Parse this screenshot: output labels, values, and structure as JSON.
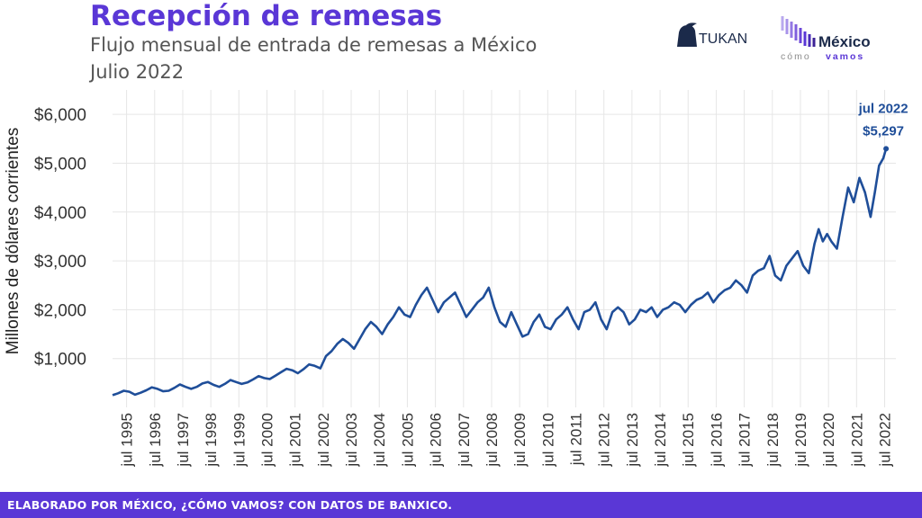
{
  "header": {
    "title": "Recepción de remesas",
    "subtitle": "Flujo mensual de entrada de remesas a México",
    "period": "Julio 2022"
  },
  "logos": {
    "tukan_text": "TUKAN",
    "mcv_name": "México",
    "mcv_tagline_a": "cómo",
    "mcv_tagline_b": "vamos"
  },
  "annotation": {
    "date": "jul 2022",
    "value": "$5,297"
  },
  "footer": {
    "credit": "ELABORADO POR MÉXICO, ¿CÓMO VAMOS? CON DATOS DE BANXICO."
  },
  "colors": {
    "accent": "#5a37d6",
    "line": "#1f4e99",
    "grid": "#e6e6e6",
    "text": "#555555"
  },
  "chart_data": {
    "type": "line",
    "ylabel": "Millones de dólares corrientes",
    "xlabel": "",
    "ylim": [
      0,
      6500
    ],
    "yticks": [
      1000,
      2000,
      3000,
      4000,
      5000,
      6000
    ],
    "ytick_labels": [
      "$1,000",
      "$2,000",
      "$3,000",
      "$4,000",
      "$5,000",
      "$6,000"
    ],
    "xlim": [
      1995.0,
      2022.9
    ],
    "xticks": [
      1995.5,
      1996.5,
      1997.5,
      1998.5,
      1999.5,
      2000.5,
      2001.5,
      2002.5,
      2003.5,
      2004.5,
      2005.5,
      2006.5,
      2007.5,
      2008.5,
      2009.5,
      2010.5,
      2011.5,
      2012.5,
      2013.5,
      2014.5,
      2015.5,
      2016.5,
      2017.5,
      2018.5,
      2019.5,
      2020.5,
      2021.5,
      2022.5
    ],
    "xtick_labels": [
      "jul 1995",
      "jul 1996",
      "jul 1997",
      "jul 1998",
      "jul 1999",
      "jul 2000",
      "jul 2001",
      "jul 2002",
      "jul 2003",
      "jul 2004",
      "jul 2005",
      "jul 2006",
      "jul 2007",
      "jul 2008",
      "jul 2009",
      "jul 2010",
      "jul 2011",
      "jul 2012",
      "jul 2013",
      "jul 2014",
      "jul 2015",
      "jul 2016",
      "jul 2017",
      "jul 2018",
      "jul 2019",
      "jul 2020",
      "jul 2021",
      "jul 2022"
    ],
    "grid": true,
    "series": [
      {
        "x": [
          1995.0,
          1995.2,
          1995.4,
          1995.6,
          1995.8,
          1996.0,
          1996.2,
          1996.4,
          1996.6,
          1996.8,
          1997.0,
          1997.2,
          1997.4,
          1997.6,
          1997.8,
          1998.0,
          1998.2,
          1998.4,
          1998.6,
          1998.8,
          1999.0,
          1999.2,
          1999.4,
          1999.6,
          1999.8,
          2000.0,
          2000.2,
          2000.4,
          2000.6,
          2000.8,
          2001.0,
          2001.2,
          2001.4,
          2001.6,
          2001.8,
          2002.0,
          2002.2,
          2002.4,
          2002.6,
          2002.8,
          2003.0,
          2003.2,
          2003.4,
          2003.6,
          2003.8,
          2004.0,
          2004.2,
          2004.4,
          2004.6,
          2004.8,
          2005.0,
          2005.2,
          2005.4,
          2005.6,
          2005.8,
          2006.0,
          2006.2,
          2006.4,
          2006.6,
          2006.8,
          2007.0,
          2007.2,
          2007.4,
          2007.6,
          2007.8,
          2008.0,
          2008.2,
          2008.4,
          2008.6,
          2008.8,
          2009.0,
          2009.2,
          2009.4,
          2009.6,
          2009.8,
          2010.0,
          2010.2,
          2010.4,
          2010.6,
          2010.8,
          2011.0,
          2011.2,
          2011.4,
          2011.6,
          2011.8,
          2012.0,
          2012.2,
          2012.4,
          2012.6,
          2012.8,
          2013.0,
          2013.2,
          2013.4,
          2013.6,
          2013.8,
          2014.0,
          2014.2,
          2014.4,
          2014.6,
          2014.8,
          2015.0,
          2015.2,
          2015.4,
          2015.6,
          2015.8,
          2016.0,
          2016.2,
          2016.4,
          2016.6,
          2016.8,
          2017.0,
          2017.2,
          2017.4,
          2017.6,
          2017.8,
          2018.0,
          2018.2,
          2018.4,
          2018.6,
          2018.8,
          2019.0,
          2019.2,
          2019.4,
          2019.6,
          2019.8,
          2020.0,
          2020.15,
          2020.3,
          2020.45,
          2020.6,
          2020.8,
          2021.0,
          2021.2,
          2021.4,
          2021.6,
          2021.8,
          2022.0,
          2022.15,
          2022.3,
          2022.45,
          2022.55
        ],
        "y": [
          250,
          290,
          340,
          320,
          260,
          300,
          350,
          410,
          380,
          330,
          340,
          400,
          470,
          420,
          380,
          420,
          490,
          520,
          460,
          420,
          480,
          560,
          520,
          480,
          510,
          570,
          640,
          600,
          580,
          650,
          720,
          790,
          760,
          700,
          780,
          880,
          850,
          800,
          1050,
          1150,
          1300,
          1400,
          1320,
          1200,
          1400,
          1600,
          1750,
          1650,
          1500,
          1700,
          1850,
          2050,
          1900,
          1850,
          2100,
          2300,
          2450,
          2200,
          1950,
          2150,
          2250,
          2350,
          2100,
          1850,
          2000,
          2150,
          2250,
          2450,
          2050,
          1750,
          1650,
          1950,
          1700,
          1450,
          1500,
          1750,
          1900,
          1650,
          1600,
          1800,
          1900,
          2050,
          1800,
          1600,
          1950,
          2000,
          2150,
          1800,
          1600,
          1950,
          2050,
          1950,
          1700,
          1800,
          2000,
          1950,
          2050,
          1850,
          2000,
          2050,
          2150,
          2100,
          1950,
          2100,
          2200,
          2250,
          2350,
          2150,
          2300,
          2400,
          2450,
          2600,
          2500,
          2350,
          2700,
          2800,
          2850,
          3100,
          2700,
          2600,
          2900,
          3050,
          3200,
          2900,
          2750,
          3350,
          3650,
          3400,
          3550,
          3400,
          3250,
          3900,
          4500,
          4200,
          4700,
          4400,
          3900,
          4400,
          4950,
          5100,
          5297
        ]
      }
    ]
  }
}
